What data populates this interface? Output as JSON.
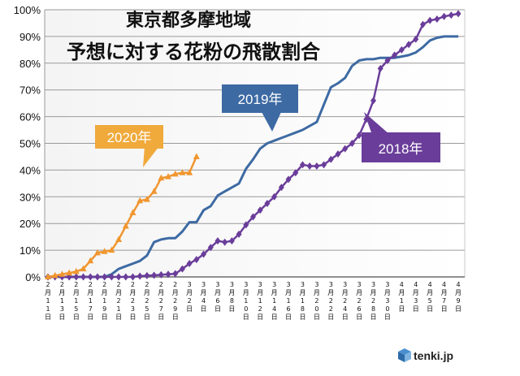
{
  "chart_data": {
    "type": "line",
    "title_line1": "東京都多摩地域",
    "title_line2": "予想に対する花粉の飛散割合",
    "ylim": [
      0,
      100
    ],
    "y_ticks": [
      0,
      10,
      20,
      30,
      40,
      50,
      60,
      70,
      80,
      90,
      100
    ],
    "y_tick_labels": [
      "0%",
      "10%",
      "20%",
      "30%",
      "40%",
      "50%",
      "60%",
      "70%",
      "80%",
      "90%",
      "100%"
    ],
    "grid": true,
    "x_count": 59,
    "x_labels": [
      {
        "idx": 0,
        "lines": [
          "2",
          "月",
          "1",
          "1",
          "日"
        ]
      },
      {
        "idx": 2,
        "lines": [
          "2",
          "月",
          "1",
          "3",
          "日"
        ]
      },
      {
        "idx": 4,
        "lines": [
          "2",
          "月",
          "1",
          "5",
          "日"
        ]
      },
      {
        "idx": 6,
        "lines": [
          "2",
          "月",
          "1",
          "7",
          "日"
        ]
      },
      {
        "idx": 8,
        "lines": [
          "2",
          "月",
          "1",
          "9",
          "日"
        ]
      },
      {
        "idx": 10,
        "lines": [
          "2",
          "月",
          "2",
          "1",
          "日"
        ]
      },
      {
        "idx": 12,
        "lines": [
          "2",
          "月",
          "2",
          "3",
          "日"
        ]
      },
      {
        "idx": 14,
        "lines": [
          "2",
          "月",
          "2",
          "5",
          "日"
        ]
      },
      {
        "idx": 16,
        "lines": [
          "2",
          "月",
          "2",
          "7",
          "日"
        ]
      },
      {
        "idx": 18,
        "lines": [
          "2",
          "月",
          "2",
          "9",
          "日"
        ]
      },
      {
        "idx": 20,
        "lines": [
          "3",
          "月",
          "2",
          "日"
        ]
      },
      {
        "idx": 22,
        "lines": [
          "3",
          "月",
          "4",
          "日"
        ]
      },
      {
        "idx": 24,
        "lines": [
          "3",
          "月",
          "6",
          "日"
        ]
      },
      {
        "idx": 26,
        "lines": [
          "3",
          "月",
          "8",
          "日"
        ]
      },
      {
        "idx": 28,
        "lines": [
          "3",
          "月",
          "1",
          "0",
          "日"
        ]
      },
      {
        "idx": 30,
        "lines": [
          "3",
          "月",
          "1",
          "2",
          "日"
        ]
      },
      {
        "idx": 32,
        "lines": [
          "3",
          "月",
          "1",
          "4",
          "日"
        ]
      },
      {
        "idx": 34,
        "lines": [
          "3",
          "月",
          "1",
          "6",
          "日"
        ]
      },
      {
        "idx": 36,
        "lines": [
          "3",
          "月",
          "1",
          "8",
          "日"
        ]
      },
      {
        "idx": 38,
        "lines": [
          "3",
          "月",
          "2",
          "0",
          "日"
        ]
      },
      {
        "idx": 40,
        "lines": [
          "3",
          "月",
          "2",
          "2",
          "日"
        ]
      },
      {
        "idx": 42,
        "lines": [
          "3",
          "月",
          "2",
          "4",
          "日"
        ]
      },
      {
        "idx": 44,
        "lines": [
          "3",
          "月",
          "2",
          "6",
          "日"
        ]
      },
      {
        "idx": 46,
        "lines": [
          "3",
          "月",
          "2",
          "8",
          "日"
        ]
      },
      {
        "idx": 48,
        "lines": [
          "3",
          "月",
          "3",
          "0",
          "日"
        ]
      },
      {
        "idx": 50,
        "lines": [
          "4",
          "月",
          "1",
          "日"
        ]
      },
      {
        "idx": 52,
        "lines": [
          "4",
          "月",
          "3",
          "日"
        ]
      },
      {
        "idx": 54,
        "lines": [
          "4",
          "月",
          "5",
          "日"
        ]
      },
      {
        "idx": 56,
        "lines": [
          "4",
          "月",
          "7",
          "日"
        ]
      },
      {
        "idx": 58,
        "lines": [
          "4",
          "月",
          "9",
          "日"
        ]
      }
    ],
    "series": [
      {
        "name": "2019年",
        "color": "#3d6aa3",
        "marker": "none",
        "values": [
          0,
          0,
          0,
          0,
          0,
          0,
          0,
          0,
          0,
          1,
          3,
          4,
          5,
          6,
          8,
          13,
          14,
          14.5,
          14.5,
          17,
          20.5,
          20.5,
          25,
          26.5,
          30.5,
          32,
          33.5,
          35,
          40.5,
          44,
          48,
          50,
          51,
          52,
          53,
          54,
          55,
          56.5,
          58,
          64.5,
          71,
          72.5,
          74.5,
          79,
          81,
          81.5,
          81.5,
          82,
          82,
          82,
          82.5,
          83,
          84,
          86,
          88.5,
          89.5,
          90,
          90,
          90
        ]
      },
      {
        "name": "2018年",
        "color": "#6a3d9a",
        "marker": "diamond",
        "values": [
          0,
          0,
          0,
          0,
          0,
          0,
          0,
          0,
          0,
          0,
          0,
          0,
          0,
          0.3,
          0.5,
          0.6,
          0.8,
          1,
          1.2,
          3,
          5,
          6.5,
          8.5,
          11,
          13.5,
          13,
          13.5,
          16,
          19.5,
          22.5,
          25,
          27.5,
          30,
          33.5,
          36.5,
          39,
          42,
          41.5,
          41.5,
          42,
          44,
          46,
          48,
          50,
          53,
          59,
          66,
          78,
          81,
          83,
          85,
          87,
          89,
          94.5,
          96,
          96.5,
          97.5,
          98,
          98.5
        ]
      },
      {
        "name": "2020年",
        "color": "#f0962f",
        "marker": "triangle",
        "values": [
          0,
          0.5,
          1,
          1.5,
          2,
          3,
          6,
          9,
          9.5,
          10,
          14,
          19,
          24,
          28.5,
          29,
          32,
          37,
          37.5,
          38.5,
          39,
          39,
          45
        ]
      }
    ],
    "callouts": [
      {
        "series": "2020年",
        "text": "2020年",
        "color": "#f0a93b"
      },
      {
        "series": "2019年",
        "text": "2019年",
        "color": "#3d6aa3"
      },
      {
        "series": "2018年",
        "text": "2018年",
        "color": "#6a3d9a"
      }
    ]
  },
  "brand": {
    "icon": "tenki-cube-icon",
    "text": "tenki.jp"
  }
}
